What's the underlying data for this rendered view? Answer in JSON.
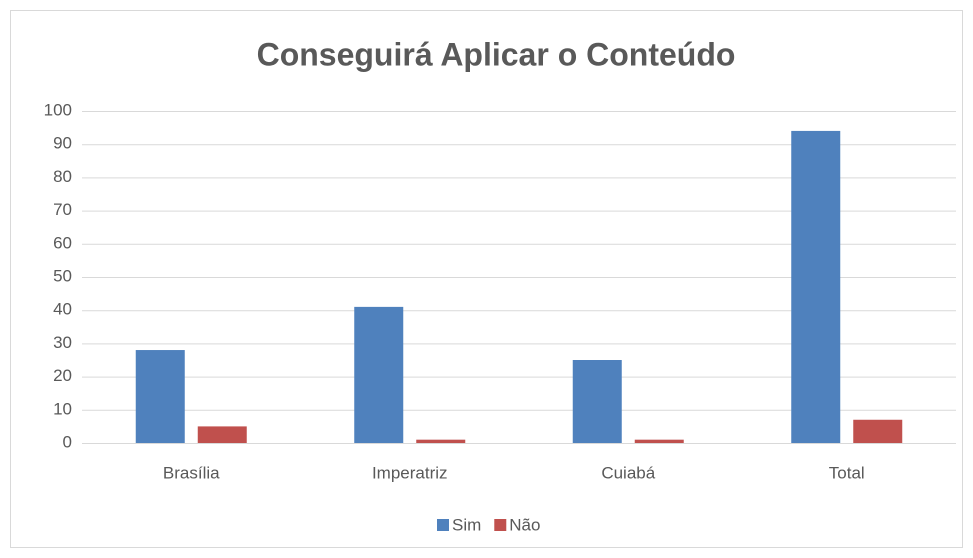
{
  "chart_data": {
    "type": "bar",
    "title": "Conseguirá Aplicar o Conteúdo",
    "categories": [
      "Brasília",
      "Imperatriz",
      "Cuiabá",
      "Total"
    ],
    "series": [
      {
        "name": "Sim",
        "color": "#4f81bd",
        "values": [
          28,
          41,
          25,
          94
        ]
      },
      {
        "name": "Não",
        "color": "#c0504d",
        "values": [
          5,
          1,
          1,
          7
        ]
      }
    ],
    "ylim": [
      0,
      100
    ],
    "yticks": [
      0,
      10,
      20,
      30,
      40,
      50,
      60,
      70,
      80,
      90,
      100
    ],
    "grid": true,
    "legend": "bottom"
  }
}
